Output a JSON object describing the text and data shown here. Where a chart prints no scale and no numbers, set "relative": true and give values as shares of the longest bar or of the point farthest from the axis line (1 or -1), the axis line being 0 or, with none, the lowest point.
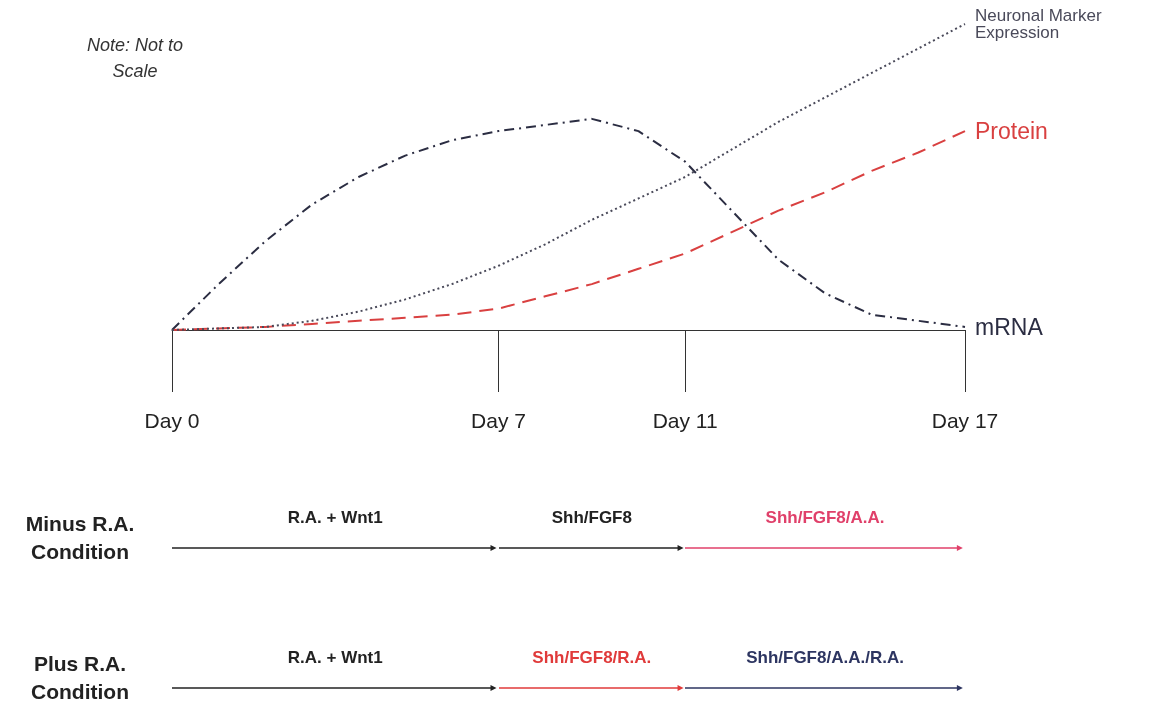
{
  "chart_data": {
    "type": "line",
    "relative": true,
    "categories": [
      "Day 0",
      null,
      null,
      null,
      null,
      null,
      null,
      "Day 7",
      null,
      null,
      null,
      "Day 11",
      null,
      null,
      null,
      null,
      null,
      "Day 17"
    ],
    "series": [
      {
        "name": "mRNA",
        "color": "#2b2d42",
        "line_style": "dashdot",
        "values": [
          0,
          0.15,
          0.29,
          0.41,
          0.5,
          0.57,
          0.62,
          0.65,
          0.67,
          0.69,
          0.65,
          0.55,
          0.39,
          0.23,
          0.12,
          0.05,
          0.03,
          0.01
        ]
      },
      {
        "name": "Protein",
        "color": "#d94040",
        "line_style": "dashed",
        "values": [
          0,
          0.005,
          0.01,
          0.02,
          0.03,
          0.04,
          0.05,
          0.07,
          0.11,
          0.15,
          0.2,
          0.25,
          0.32,
          0.39,
          0.45,
          0.52,
          0.58,
          0.65
        ]
      },
      {
        "name": "Neuronal Marker Expression",
        "color": "#4a4a5a",
        "line_style": "dotted",
        "values": [
          0,
          0.005,
          0.01,
          0.03,
          0.06,
          0.1,
          0.15,
          0.21,
          0.28,
          0.36,
          0.43,
          0.5,
          0.59,
          0.68,
          0.76,
          0.84,
          0.92,
          1
        ]
      }
    ],
    "annotations": [
      "Note: Not to Scale",
      "Minus R.A. Condition",
      "R.A. + Wnt1",
      "Shh/FGF8",
      "Shh/FGF8/A.A.",
      "Plus R.A. Condition",
      "R.A. + Wnt1",
      "Shh/FGF8/R.A.",
      "Shh/FGF8/A.A./R.A."
    ]
  }
}
